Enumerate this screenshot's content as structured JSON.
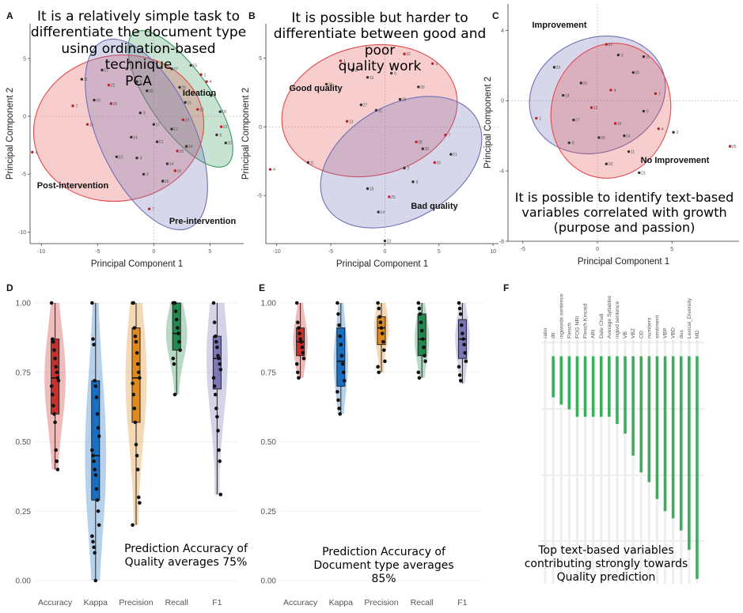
{
  "panel_letters": [
    "A",
    "B",
    "C",
    "D",
    "E",
    "F"
  ],
  "overlays": {
    "a": [
      "It is a relatively simple task to",
      "differentiate the document type",
      "using ordination-based technique",
      "PCA"
    ],
    "b": [
      "It is possible but harder to",
      "differentiate between good and poor",
      "quality work"
    ],
    "c": [
      "It is possible to identify text-based",
      "variables correlated with growth",
      "(purpose and passion)"
    ],
    "d": [
      "Prediction Accuracy of",
      "Quality averages 75%"
    ],
    "e": [
      "Prediction Accuracy of",
      "Document type averages 85%"
    ],
    "f": [
      "Top text-based variables",
      "contributing strongly towards",
      "Quality prediction"
    ]
  },
  "chart_data": [
    {
      "panel": "A",
      "type": "scatter",
      "xlabel": "Principal Component 1",
      "ylabel": "Principal Component 2",
      "xticks": [
        -10,
        -5,
        0,
        5
      ],
      "yticks": [
        5,
        0,
        -5,
        -10
      ],
      "xlim": [
        -11,
        8
      ],
      "ylim": [
        -11,
        8
      ],
      "ellipse_labels": [
        "Ideation",
        "Post-intervention",
        "Pre-intervention"
      ],
      "colors": {
        "Ideation": "#3a9a5a",
        "Post-intervention": "#e34a4a",
        "Pre-intervention": "#6f6fb8"
      },
      "series": [
        {
          "name": "Ideation",
          "points": [
            [
              4.2,
              3.6
            ],
            [
              5.1,
              1.8
            ],
            [
              3.3,
              4.4
            ],
            [
              6.0,
              -0.9
            ],
            [
              2.3,
              2.5
            ],
            [
              5.6,
              -1.6
            ],
            [
              3.9,
              0.6
            ],
            [
              6.4,
              -2.3
            ],
            [
              1.6,
              4.1
            ],
            [
              4.7,
              3.0
            ],
            [
              2.8,
              1.2
            ],
            [
              5.9,
              0.4
            ]
          ]
        },
        {
          "name": "Post-intervention",
          "points": [
            [
              -10.8,
              -3.1
            ],
            [
              -6.4,
              3.2
            ],
            [
              -5.3,
              1.4
            ],
            [
              -4.0,
              2.7
            ],
            [
              -2.4,
              4.1
            ],
            [
              -1.2,
              0.3
            ],
            [
              -5.9,
              -0.7
            ],
            [
              -3.3,
              -3.5
            ],
            [
              -0.6,
              2.2
            ],
            [
              -7.2,
              0.9
            ],
            [
              -2.0,
              -1.8
            ],
            [
              -4.6,
              4.0
            ],
            [
              -3.8,
              1.1
            ],
            [
              -1.5,
              3.0
            ]
          ]
        },
        {
          "name": "Pre-intervention",
          "points": [
            [
              -0.4,
              -8.0
            ],
            [
              1.2,
              -4.1
            ],
            [
              0.3,
              -2.2
            ],
            [
              2.1,
              -3.0
            ],
            [
              -0.9,
              -5.0
            ],
            [
              1.6,
              -1.1
            ],
            [
              2.6,
              -0.3
            ],
            [
              0.8,
              -5.6
            ],
            [
              -1.5,
              -3.6
            ],
            [
              1.9,
              -4.7
            ],
            [
              0.0,
              -0.7
            ],
            [
              2.9,
              -2.6
            ]
          ]
        }
      ]
    },
    {
      "panel": "B",
      "type": "scatter",
      "xlabel": "Principal Component 1",
      "ylabel": "Principal Component 2",
      "xticks": [
        -10,
        -5,
        0,
        5,
        10
      ],
      "yticks": [
        5,
        0,
        -5
      ],
      "xlim": [
        -11,
        10.5
      ],
      "ylim": [
        -8.5,
        7.5
      ],
      "ellipse_labels": [
        "Good quality",
        "Bad quality"
      ],
      "colors": {
        "Good quality": "#e34a4a",
        "Bad quality": "#6f6fb8"
      },
      "series": [
        {
          "name": "Good quality",
          "points": [
            [
              -4.1,
              4.8
            ],
            [
              -3.0,
              4.1
            ],
            [
              -1.6,
              3.6
            ],
            [
              1.8,
              5.3
            ],
            [
              -5.4,
              3.1
            ],
            [
              0.6,
              3.9
            ],
            [
              -3.5,
              0.4
            ],
            [
              3.1,
              2.9
            ],
            [
              -2.2,
              1.6
            ],
            [
              4.4,
              4.6
            ],
            [
              -0.8,
              1.2
            ],
            [
              1.4,
              2.0
            ]
          ]
        },
        {
          "name": "Bad quality",
          "points": [
            [
              -10.6,
              -3.1
            ],
            [
              -7.1,
              -2.6
            ],
            [
              -1.6,
              -4.5
            ],
            [
              0.4,
              -5.1
            ],
            [
              1.8,
              -3.0
            ],
            [
              2.6,
              -4.0
            ],
            [
              4.6,
              -2.6
            ],
            [
              0.0,
              -8.3
            ],
            [
              3.5,
              -1.6
            ],
            [
              5.6,
              -0.6
            ],
            [
              -0.6,
              -6.2
            ],
            [
              6.1,
              -2.0
            ],
            [
              2.9,
              -1.1
            ]
          ]
        }
      ]
    },
    {
      "panel": "C",
      "type": "scatter",
      "xlabel": "Principal Component 1",
      "ylabel": "Principal Component 2",
      "xticks": [
        -5,
        0,
        5
      ],
      "yticks": [
        4,
        0,
        -4,
        -8
      ],
      "xlim": [
        -6,
        9.5
      ],
      "ylim": [
        -8,
        5.5
      ],
      "ellipse_labels": [
        "Improvement",
        "No Improvement"
      ],
      "colors": {
        "Improvement": "#6f6fb8",
        "No Improvement": "#e34a4a"
      },
      "series": [
        {
          "name": "Improvement",
          "points": [
            [
              -4.1,
              -1.0
            ],
            [
              -1.9,
              -2.4
            ],
            [
              -1.1,
              1.0
            ],
            [
              0.6,
              3.2
            ],
            [
              -2.9,
              1.9
            ],
            [
              1.4,
              2.6
            ],
            [
              -0.4,
              -0.4
            ],
            [
              2.4,
              1.6
            ],
            [
              -1.6,
              -1.1
            ],
            [
              0.9,
              0.6
            ],
            [
              3.1,
              2.5
            ],
            [
              -2.3,
              0.3
            ]
          ]
        },
        {
          "name": "No Improvement",
          "points": [
            [
              4.1,
              -1.6
            ],
            [
              2.1,
              -2.9
            ],
            [
              0.6,
              -3.6
            ],
            [
              8.9,
              -2.6
            ],
            [
              5.1,
              -1.8
            ],
            [
              3.1,
              -0.6
            ],
            [
              1.2,
              -1.3
            ],
            [
              2.8,
              -4.1
            ],
            [
              0.1,
              -2.1
            ],
            [
              3.9,
              0.4
            ],
            [
              1.8,
              -2.0
            ]
          ]
        }
      ]
    },
    {
      "panel": "D",
      "type": "violin-box",
      "categories": [
        "Accuracy",
        "Kappa",
        "Precision",
        "Recall",
        "F1"
      ],
      "yticks": [
        "0.00",
        "0.25",
        "0.50",
        "0.75",
        "1.00"
      ],
      "ylim": [
        0,
        1
      ],
      "colors": [
        "#c9302c",
        "#1a6fc0",
        "#e08a1e",
        "#1f8a4c",
        "#7c76b3"
      ],
      "series": [
        {
          "name": "Accuracy",
          "box": [
            0.4,
            0.6,
            0.73,
            0.87,
            1.0
          ],
          "points": [
            1.0,
            0.87,
            0.86,
            0.83,
            0.8,
            0.77,
            0.75,
            0.73,
            0.72,
            0.7,
            0.67,
            0.63,
            0.6,
            0.57,
            0.47,
            0.43,
            0.4
          ]
        },
        {
          "name": "Kappa",
          "box": [
            0.0,
            0.29,
            0.45,
            0.72,
            1.0
          ],
          "points": [
            1.0,
            0.87,
            0.85,
            0.72,
            0.7,
            0.66,
            0.6,
            0.55,
            0.52,
            0.47,
            0.45,
            0.43,
            0.4,
            0.38,
            0.33,
            0.29,
            0.25,
            0.2,
            0.16,
            0.14,
            0.12,
            0.1,
            0.0
          ]
        },
        {
          "name": "Precision",
          "box": [
            0.2,
            0.57,
            0.73,
            0.91,
            1.0
          ],
          "points": [
            1.0,
            1.0,
            0.91,
            0.88,
            0.86,
            0.82,
            0.78,
            0.75,
            0.73,
            0.71,
            0.67,
            0.62,
            0.57,
            0.49,
            0.45,
            0.4,
            0.3,
            0.28,
            0.2
          ]
        },
        {
          "name": "Recall",
          "box": [
            0.67,
            0.83,
            0.89,
            1.0,
            1.0
          ],
          "points": [
            1.0,
            1.0,
            1.0,
            0.97,
            0.94,
            0.91,
            0.89,
            0.86,
            0.83,
            0.8,
            0.78,
            0.67
          ]
        },
        {
          "name": "F1",
          "box": [
            0.31,
            0.69,
            0.8,
            0.88,
            1.0
          ],
          "points": [
            1.0,
            0.93,
            0.88,
            0.86,
            0.84,
            0.81,
            0.8,
            0.78,
            0.76,
            0.73,
            0.7,
            0.67,
            0.62,
            0.59,
            0.54,
            0.47,
            0.43,
            0.31
          ]
        }
      ]
    },
    {
      "panel": "E",
      "type": "violin-box",
      "categories": [
        "Accuracy",
        "Kappa",
        "Precision",
        "Recall",
        "F1"
      ],
      "yticks": [
        "0.00",
        "0.25",
        "0.50",
        "0.75",
        "1.00"
      ],
      "ylim": [
        0,
        1
      ],
      "colors": [
        "#c9302c",
        "#1a6fc0",
        "#e08a1e",
        "#1f8a4c",
        "#7c76b3"
      ],
      "series": [
        {
          "name": "Accuracy",
          "box": [
            0.73,
            0.81,
            0.86,
            0.91,
            1.0
          ],
          "points": [
            1.0,
            0.93,
            0.91,
            0.89,
            0.87,
            0.86,
            0.84,
            0.82,
            0.8,
            0.78,
            0.75,
            0.73
          ]
        },
        {
          "name": "Kappa",
          "box": [
            0.6,
            0.7,
            0.79,
            0.91,
            1.0
          ],
          "points": [
            1.0,
            0.96,
            0.92,
            0.88,
            0.85,
            0.81,
            0.78,
            0.75,
            0.72,
            0.68,
            0.65,
            0.62,
            0.6
          ]
        },
        {
          "name": "Precision",
          "box": [
            0.75,
            0.85,
            0.91,
            0.95,
            1.0
          ],
          "points": [
            1.0,
            0.98,
            0.95,
            0.93,
            0.91,
            0.89,
            0.86,
            0.83,
            0.79,
            0.77,
            0.75
          ]
        },
        {
          "name": "Recall",
          "box": [
            0.73,
            0.81,
            0.87,
            0.96,
            1.0
          ],
          "points": [
            1.0,
            0.98,
            0.96,
            0.93,
            0.9,
            0.87,
            0.84,
            0.81,
            0.79,
            0.75,
            0.73
          ]
        },
        {
          "name": "F1",
          "box": [
            0.71,
            0.8,
            0.87,
            0.94,
            1.0
          ],
          "points": [
            1.0,
            0.98,
            0.96,
            0.92,
            0.89,
            0.87,
            0.85,
            0.82,
            0.79,
            0.77,
            0.74,
            0.72
          ]
        }
      ]
    },
    {
      "panel": "F",
      "type": "bar",
      "categories": [
        "ratio",
        "dtr",
        "ingwords sentence",
        "Flesch",
        "FOG NRI",
        "Flesch Kincaid",
        "ARI",
        "Dale Chall",
        "Average Syllables",
        "ingwd sentence",
        "VB",
        "VBZ",
        "CD",
        "numbers",
        "sentiment",
        "VBP",
        "VBD",
        "dux",
        "Lexical_Diversity",
        "MD"
      ],
      "values": [
        0.94,
        0.77,
        0.74,
        0.72,
        0.69,
        0.69,
        0.69,
        0.69,
        0.69,
        0.66,
        0.62,
        0.53,
        0.46,
        0.42,
        0.35,
        0.3,
        0.27,
        0.22,
        0.14,
        0.02
      ],
      "ylim": [
        0,
        1
      ],
      "colors": {
        "bar": "#3aae5a",
        "ref": "#7fcf8f"
      }
    }
  ]
}
